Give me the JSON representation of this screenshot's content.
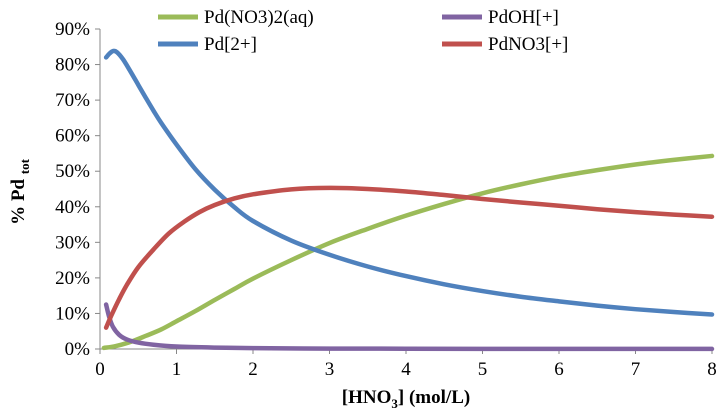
{
  "chart_data": {
    "type": "line",
    "xlabel": {
      "main": "[HNO",
      "sub": "3",
      "rest": "] (mol/L)"
    },
    "ylabel": {
      "main": "% Pd ",
      "sub": "tot"
    },
    "xlim": [
      0,
      8
    ],
    "ylim": [
      0,
      90
    ],
    "xticks": [
      "0",
      "1",
      "2",
      "3",
      "4",
      "5",
      "6",
      "7",
      "8"
    ],
    "yticks": [
      "0%",
      "10%",
      "20%",
      "30%",
      "40%",
      "50%",
      "60%",
      "70%",
      "80%",
      "90%"
    ],
    "grid": false,
    "legend_position": "top",
    "series": [
      {
        "name": "Pd(NO3)2(aq)",
        "color": "#9bbb59",
        "points": [
          [
            0.05,
            0.3
          ],
          [
            0.2,
            0.8
          ],
          [
            0.4,
            2.0
          ],
          [
            0.6,
            3.7
          ],
          [
            0.8,
            5.5
          ],
          [
            1.0,
            7.8
          ],
          [
            1.25,
            10.7
          ],
          [
            1.5,
            13.8
          ],
          [
            1.75,
            16.8
          ],
          [
            2.0,
            19.8
          ],
          [
            2.5,
            25.0
          ],
          [
            3.0,
            29.8
          ],
          [
            3.5,
            33.8
          ],
          [
            4.0,
            37.5
          ],
          [
            4.5,
            40.8
          ],
          [
            5.0,
            43.8
          ],
          [
            5.5,
            46.3
          ],
          [
            6.0,
            48.5
          ],
          [
            6.5,
            50.3
          ],
          [
            7.0,
            51.9
          ],
          [
            7.5,
            53.2
          ],
          [
            8.0,
            54.3
          ]
        ]
      },
      {
        "name": "Pd[2+]",
        "color": "#4f81bd",
        "points": [
          [
            0.08,
            82.0
          ],
          [
            0.12,
            83.0
          ],
          [
            0.17,
            83.8
          ],
          [
            0.22,
            83.5
          ],
          [
            0.3,
            81.5
          ],
          [
            0.4,
            78.0
          ],
          [
            0.5,
            74.3
          ],
          [
            0.6,
            70.6
          ],
          [
            0.7,
            67.0
          ],
          [
            0.8,
            63.6
          ],
          [
            1.0,
            57.5
          ],
          [
            1.25,
            50.5
          ],
          [
            1.5,
            44.8
          ],
          [
            1.75,
            40.0
          ],
          [
            2.0,
            36.0
          ],
          [
            2.5,
            30.5
          ],
          [
            3.0,
            26.5
          ],
          [
            3.5,
            23.2
          ],
          [
            4.0,
            20.5
          ],
          [
            4.5,
            18.2
          ],
          [
            5.0,
            16.3
          ],
          [
            5.5,
            14.7
          ],
          [
            6.0,
            13.4
          ],
          [
            6.5,
            12.2
          ],
          [
            7.0,
            11.2
          ],
          [
            7.5,
            10.4
          ],
          [
            8.0,
            9.7
          ]
        ]
      },
      {
        "name": "PdOH[+]",
        "color": "#8064a2",
        "points": [
          [
            0.08,
            12.5
          ],
          [
            0.12,
            9.0
          ],
          [
            0.17,
            6.2
          ],
          [
            0.25,
            4.0
          ],
          [
            0.35,
            2.7
          ],
          [
            0.5,
            1.8
          ],
          [
            0.7,
            1.2
          ],
          [
            1.0,
            0.7
          ],
          [
            1.5,
            0.4
          ],
          [
            2.0,
            0.25
          ],
          [
            3.0,
            0.12
          ],
          [
            4.0,
            0.08
          ],
          [
            5.0,
            0.05
          ],
          [
            6.0,
            0.03
          ],
          [
            8.0,
            0.02
          ]
        ]
      },
      {
        "name": "PdNO3[+]",
        "color": "#c0504d",
        "points": [
          [
            0.08,
            6.0
          ],
          [
            0.15,
            9.5
          ],
          [
            0.25,
            14.0
          ],
          [
            0.35,
            18.0
          ],
          [
            0.5,
            23.0
          ],
          [
            0.7,
            28.0
          ],
          [
            0.9,
            32.5
          ],
          [
            1.1,
            35.8
          ],
          [
            1.3,
            38.5
          ],
          [
            1.5,
            40.5
          ],
          [
            1.75,
            42.3
          ],
          [
            2.0,
            43.5
          ],
          [
            2.5,
            44.9
          ],
          [
            3.0,
            45.3
          ],
          [
            3.5,
            45.0
          ],
          [
            4.0,
            44.3
          ],
          [
            4.5,
            43.3
          ],
          [
            5.0,
            42.2
          ],
          [
            5.5,
            41.2
          ],
          [
            6.0,
            40.3
          ],
          [
            6.5,
            39.3
          ],
          [
            7.0,
            38.5
          ],
          [
            7.5,
            37.8
          ],
          [
            8.0,
            37.2
          ]
        ]
      }
    ]
  }
}
